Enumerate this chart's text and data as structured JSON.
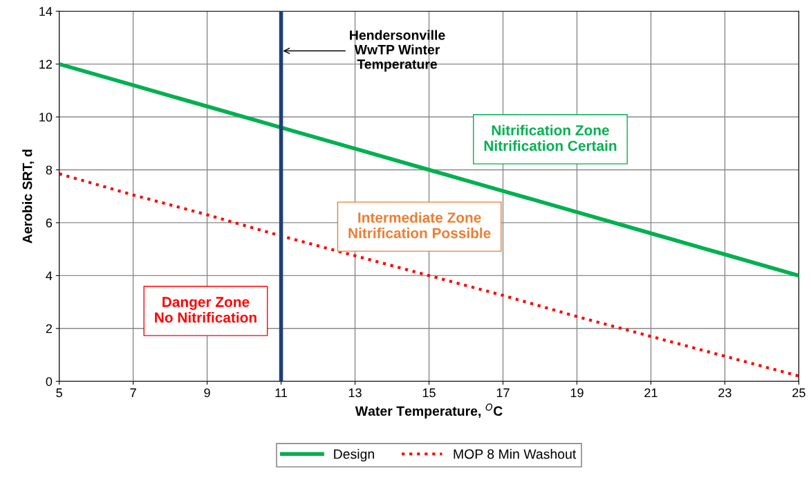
{
  "chart_data": {
    "type": "line",
    "xlabel": "Water Temperature, $^{O}$C",
    "ylabel": "Aerobic SRT, d",
    "xlim": [
      5,
      25
    ],
    "xticks": [
      5,
      7,
      9,
      11,
      13,
      15,
      17,
      19,
      21,
      23,
      25
    ],
    "ylim": [
      0,
      14
    ],
    "yticks": [
      0,
      2,
      4,
      6,
      8,
      10,
      12,
      14
    ],
    "grid": true,
    "legend": "bottom",
    "series": [
      {
        "name": "Design",
        "color": "#00b050",
        "x": [
          5,
          7,
          9,
          11,
          13,
          15,
          17,
          19,
          21,
          23,
          25
        ],
        "values": [
          12,
          11.2,
          10.4,
          9.6,
          8.8,
          8,
          7.2,
          6.4,
          5.6,
          4.8,
          4
        ],
        "line_style": "solid"
      },
      {
        "name": "MOP 8 Min Washout",
        "color": "#ff0000",
        "x": [
          5,
          7,
          9,
          11,
          13,
          15,
          17,
          19,
          21,
          23,
          25
        ],
        "values": [
          7.85,
          7.05,
          6.3,
          5.5,
          4.75,
          4,
          3.25,
          2.45,
          1.7,
          0.95,
          0.2
        ],
        "line_style": "dotted"
      }
    ],
    "ref_lines": [
      {
        "axis": "x",
        "value": 11,
        "color": "#1f3f7a"
      }
    ],
    "annotations": [
      {
        "text": "Hendersonville\nWwTP Winter\nTemperature",
        "x": 11,
        "y": 12.5
      },
      "Nitrification Zone\nNitrification Certain",
      "Intermediate Zone\nNitrification Possible",
      "Danger Zone\nNo Nitrification"
    ]
  }
}
